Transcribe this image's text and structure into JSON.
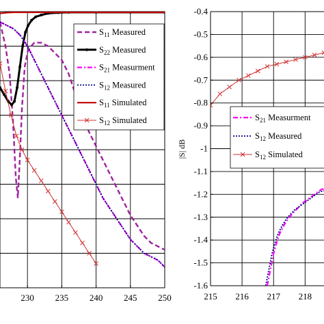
{
  "chart_data": [
    {
      "type": "line",
      "title": "",
      "xlabel": "",
      "ylabel": "",
      "xlim": [
        226,
        250
      ],
      "ylim": [
        -80,
        0
      ],
      "x_ticks": [
        "230",
        "235",
        "240",
        "245",
        "250"
      ],
      "grid": true,
      "legend_placement": "top-right",
      "series": [
        {
          "name": "S11 Measured",
          "sub": "11",
          "suffix": "Measured",
          "color": "#a020a0",
          "style": "dash",
          "x": [
            226,
            226.8,
            227.4,
            227.9,
            228.3,
            228.6,
            228.9,
            229.2,
            229.6,
            230.1,
            231,
            232,
            233,
            234,
            235,
            236,
            237,
            238,
            239,
            240,
            241,
            242,
            243,
            244,
            245,
            246,
            247,
            248,
            249,
            250
          ],
          "y": [
            -3,
            -10,
            -18,
            -32,
            -48,
            -54,
            -42,
            -28,
            -16,
            -11,
            -9,
            -9,
            -10,
            -12,
            -14,
            -18,
            -24,
            -30,
            -35,
            -39,
            -43,
            -47,
            -51,
            -55,
            -59,
            -62,
            -65,
            -67,
            -68,
            -69
          ]
        },
        {
          "name": "S22 Measured",
          "sub": "22",
          "suffix": "Measured",
          "color": "#000000",
          "style": "solid-dot",
          "x": [
            226,
            226.6,
            227.2,
            227.7,
            228.1,
            228.5,
            228.9,
            229.3,
            229.7,
            230.1,
            230.6,
            231.2,
            232,
            233,
            234.5,
            236,
            240,
            245,
            250
          ],
          "y": [
            -22,
            -24,
            -26,
            -27,
            -26,
            -22,
            -16,
            -10,
            -6,
            -4,
            -2.5,
            -1.5,
            -1,
            -0.5,
            -0.3,
            -0.2,
            -0.2,
            -0.2,
            -0.2
          ]
        },
        {
          "name": "S21 Measurment",
          "sub": "21",
          "suffix": "Measurment",
          "color": "#ff00ff",
          "style": "dashdot",
          "x": [
            226,
            227,
            228,
            229,
            230,
            231,
            232,
            233,
            234,
            235,
            236,
            237,
            238,
            239,
            240,
            241,
            242,
            243,
            244,
            245,
            246,
            247,
            248,
            249,
            250
          ],
          "y": [
            -3,
            -4,
            -5,
            -7,
            -10,
            -14,
            -18,
            -22,
            -26,
            -30,
            -34,
            -38,
            -42,
            -46,
            -50,
            -54,
            -57,
            -60,
            -63,
            -66,
            -68,
            -70,
            -71,
            -72,
            -74
          ]
        },
        {
          "name": "S12 Measured",
          "sub": "12",
          "suffix": "Measured",
          "color": "#000080",
          "style": "dotted",
          "x": [
            226,
            227,
            228,
            229,
            230,
            231,
            232,
            233,
            234,
            235,
            236,
            237,
            238,
            239,
            240,
            241,
            242,
            243,
            244,
            245,
            246,
            247,
            248,
            249,
            250
          ],
          "y": [
            -3,
            -4,
            -5,
            -7,
            -10,
            -14,
            -18,
            -22,
            -26,
            -30,
            -34,
            -38,
            -42,
            -46,
            -50,
            -54,
            -57,
            -60,
            -63,
            -66,
            -68,
            -70,
            -71,
            -72,
            -74
          ]
        },
        {
          "name": "S11 Simulated",
          "sub": "11",
          "suffix": "Simulated",
          "color": "#c00000",
          "style": "solid",
          "x": [
            226,
            227,
            228,
            229,
            230,
            231,
            232,
            233,
            234,
            235,
            240,
            245,
            250
          ],
          "y": [
            -0.5,
            -0.3,
            -0.2,
            -0.2,
            -0.2,
            -0.2,
            -0.2,
            -0.2,
            -0.2,
            -0.2,
            -0.2,
            -0.2,
            -0.2
          ]
        },
        {
          "name": "S12 Simulated",
          "sub": "12",
          "suffix": "Simulated",
          "color": "#d03030",
          "style": "cross",
          "x": [
            226,
            226.8,
            227.6,
            228.4,
            229.2,
            230,
            231,
            232,
            233,
            234,
            235,
            236,
            237,
            238,
            239,
            240
          ],
          "y": [
            -15,
            -23,
            -30,
            -36,
            -40,
            -43,
            -46,
            -49,
            -52,
            -55,
            -58,
            -61,
            -64,
            -67,
            -70,
            -73
          ]
        }
      ]
    },
    {
      "type": "line",
      "title": "",
      "xlabel": "",
      "ylabel": "|S| dB",
      "xlim": [
        215,
        219
      ],
      "ylim": [
        -1.6,
        -0.4
      ],
      "x_ticks": [
        "215",
        "216",
        "217",
        "218"
      ],
      "y_ticks": [
        "-0.4",
        "-0.5",
        "-0.6",
        "-0.7",
        "-0.8",
        "-0.9",
        "-1",
        "-1.1",
        "-1.2",
        "-1.3",
        "-1.4",
        "-1.5",
        "-1.6"
      ],
      "grid": true,
      "legend_placement": "middle-right",
      "series": [
        {
          "name": "S21 Measurment",
          "sub": "21",
          "suffix": "Measurment",
          "color": "#ff00ff",
          "style": "dashdot",
          "x": [
            216.8,
            216.9,
            217.0,
            217.1,
            217.2,
            217.35,
            217.5,
            217.7,
            217.9,
            218.1,
            218.3,
            218.5,
            218.7,
            219
          ],
          "y": [
            -1.6,
            -1.53,
            -1.46,
            -1.41,
            -1.37,
            -1.33,
            -1.3,
            -1.27,
            -1.24,
            -1.22,
            -1.2,
            -1.18,
            -1.17,
            -1.15
          ]
        },
        {
          "name": "S12 Measured",
          "sub": "12",
          "suffix": "Measured",
          "color": "#000080",
          "style": "dotted",
          "x": [
            216.75,
            216.85,
            216.95,
            217.05,
            217.15,
            217.3,
            217.45,
            217.65,
            217.85,
            218.05,
            218.25,
            218.45,
            218.7,
            219
          ],
          "y": [
            -1.6,
            -1.53,
            -1.46,
            -1.41,
            -1.37,
            -1.33,
            -1.3,
            -1.27,
            -1.25,
            -1.23,
            -1.21,
            -1.19,
            -1.18,
            -1.16
          ]
        },
        {
          "name": "S12 Simulated",
          "sub": "12",
          "suffix": "Simulated",
          "color": "#d03030",
          "style": "cross",
          "x": [
            215,
            215.3,
            215.6,
            215.9,
            216.2,
            216.5,
            216.8,
            217.1,
            217.4,
            217.7,
            218.0,
            218.3,
            218.6,
            219
          ],
          "y": [
            -0.81,
            -0.76,
            -0.73,
            -0.7,
            -0.68,
            -0.66,
            -0.64,
            -0.63,
            -0.62,
            -0.61,
            -0.6,
            -0.59,
            -0.58,
            -0.57
          ]
        }
      ]
    }
  ]
}
